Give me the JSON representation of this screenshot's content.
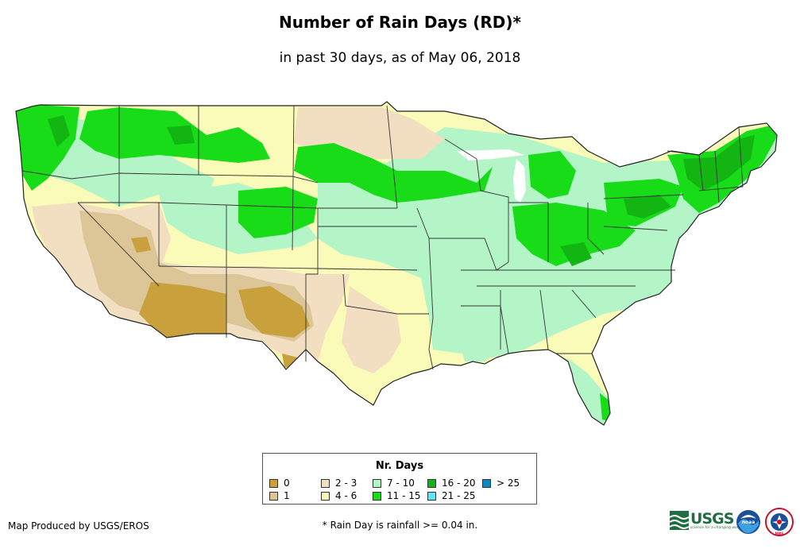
{
  "title": "Number of Rain Days (RD)*",
  "subtitle": "in past 30 days, as of May 06, 2018",
  "legend": {
    "title": "Nr. Days",
    "items": [
      {
        "label": "0",
        "color": "#c8a03c"
      },
      {
        "label": "1",
        "color": "#dcc596"
      },
      {
        "label": "2 - 3",
        "color": "#f2dfc1"
      },
      {
        "label": "4 - 6",
        "color": "#fafab9"
      },
      {
        "label": "7 - 10",
        "color": "#b4f5c8"
      },
      {
        "label": "11 - 15",
        "color": "#17dc17"
      },
      {
        "label": "16 - 20",
        "color": "#12b512"
      },
      {
        "label": "21 - 25",
        "color": "#5ae6ff"
      },
      {
        "label": "> 25",
        "color": "#0f87c3"
      }
    ]
  },
  "credit": "Map Produced by USGS/EROS",
  "footnote": "* Rain Day is rainfall >= 0.04 in.",
  "logos": {
    "usgs": {
      "text": "USGS",
      "tagline": "science for a changing world"
    },
    "noaa": {
      "text": "noaa"
    },
    "nws": {
      "text": "NWS"
    }
  }
}
